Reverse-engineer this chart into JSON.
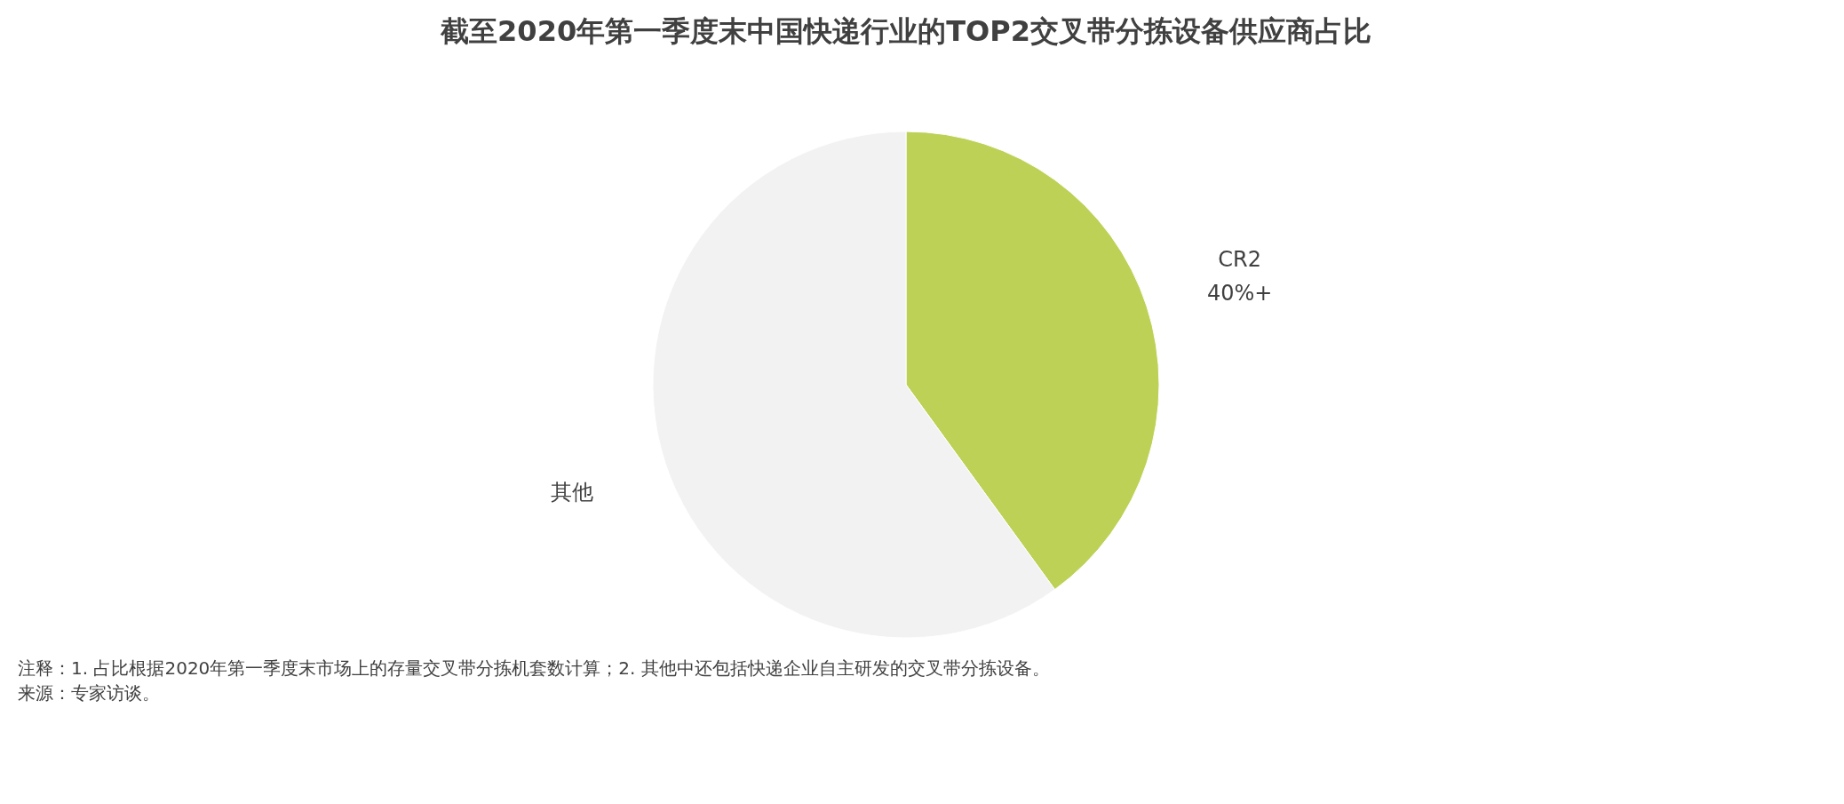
{
  "chart_data": {
    "type": "pie",
    "title": "截至2020年第一季度末中国快递行业的TOP2交叉带分拣设备供应商占比",
    "categories": [
      "CR2",
      "其他"
    ],
    "values": [
      40,
      60
    ],
    "value_labels": [
      "40%+",
      null
    ],
    "colors": [
      "#bcd155",
      "#f2f2f2"
    ],
    "legend": false,
    "annotations": [
      "注释：1. 占比根据2020年第一季度末市场上的存量交叉带分拣机套数计算；2. 其他中还包括快递企业自主研发的交叉带分拣设备。",
      "来源：专家访谈。"
    ]
  }
}
